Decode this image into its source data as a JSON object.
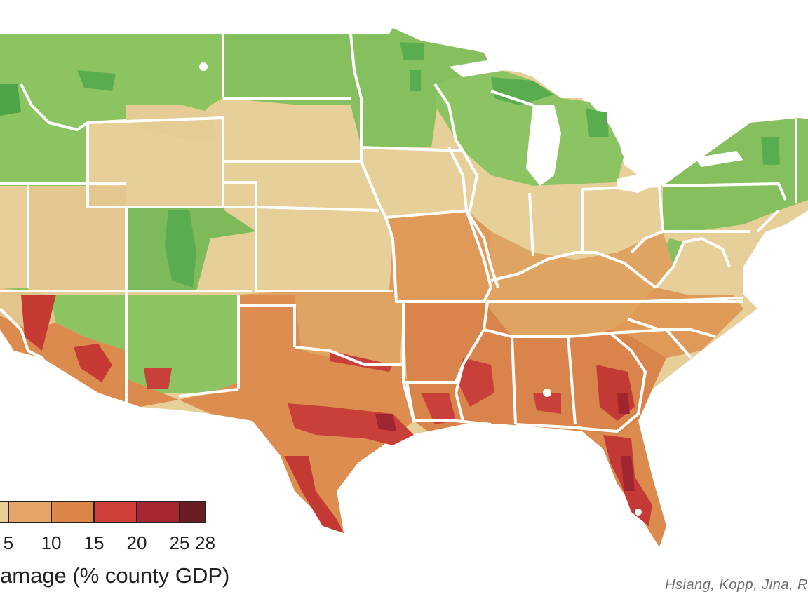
{
  "legend": {
    "title": "amage (% county GDP)",
    "ticks": [
      "5",
      "10",
      "15",
      "20",
      "25",
      "28"
    ],
    "bins": [
      {
        "from": 0,
        "to": 5,
        "color": "#e9cf96"
      },
      {
        "from": 5,
        "to": 10,
        "color": "#e5a567"
      },
      {
        "from": 10,
        "to": 15,
        "color": "#dc8549"
      },
      {
        "from": 15,
        "to": 20,
        "color": "#cd3f38"
      },
      {
        "from": 20,
        "to": 25,
        "color": "#a72833"
      },
      {
        "from": 25,
        "to": 28,
        "color": "#6b1c24"
      }
    ]
  },
  "credit": "Hsiang, Kopp, Jina, R",
  "colors": {
    "gain_dark": "#4ea448",
    "gain": "#7dc15d",
    "gain_light": "#9cca6c",
    "neutral": "#e6cf98",
    "low": "#e0a462",
    "mid": "#d98449",
    "high": "#cf4438",
    "very_high": "#a8262f",
    "border": "#ffffff",
    "water": "#ffffff"
  }
}
